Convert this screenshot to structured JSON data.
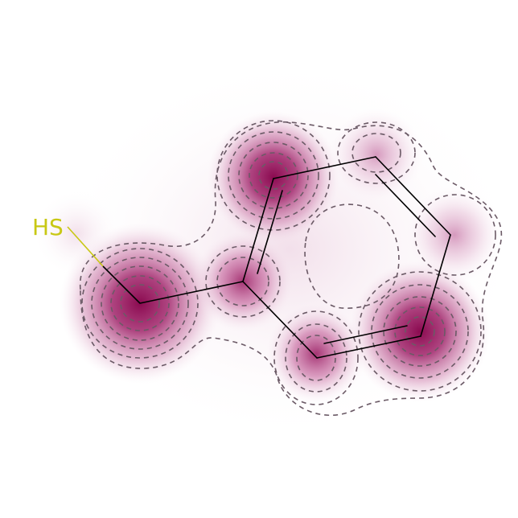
{
  "molecule": {
    "atom_labels": [
      {
        "id": "S1",
        "text": "HS",
        "color": "#c8c814"
      }
    ]
  },
  "colors": {
    "bond": "#000000",
    "heteroatom_S": "#c8c814",
    "density_core": "#8b0a50",
    "contour": "#6b5a66",
    "background": "#ffffff"
  }
}
